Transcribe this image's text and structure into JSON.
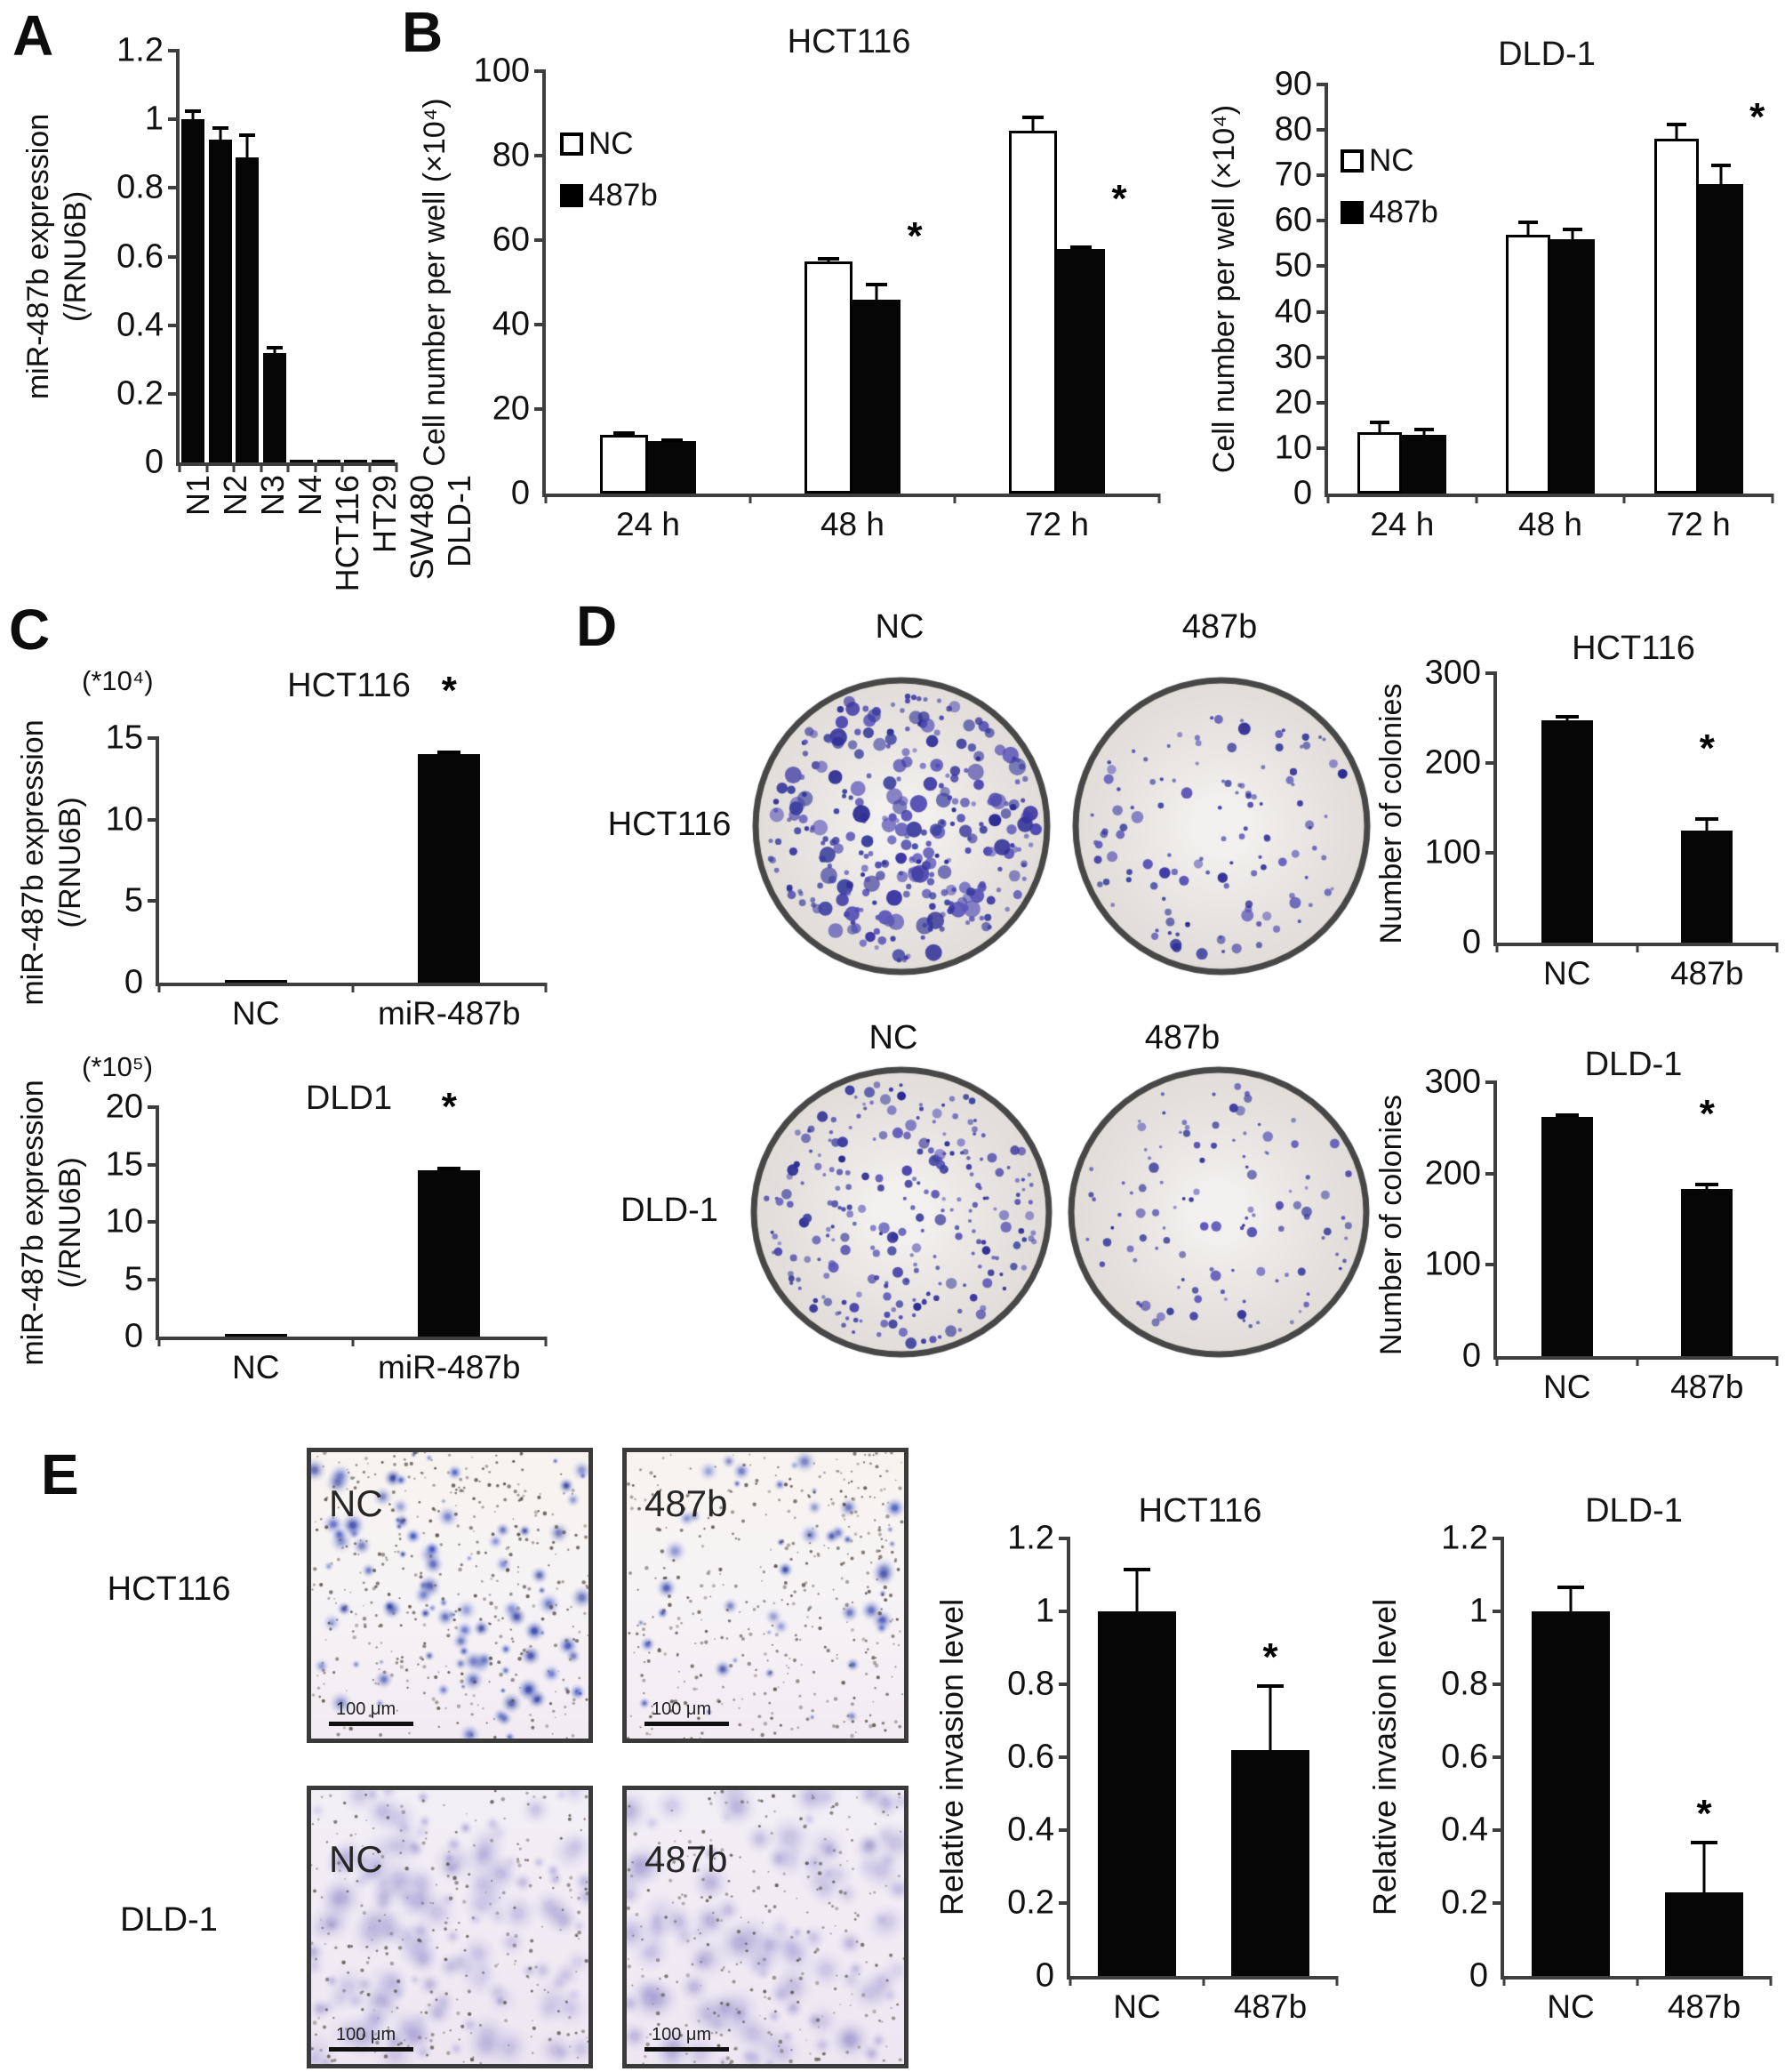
{
  "panels": {
    "A": {
      "label": "A"
    },
    "B": {
      "label": "B"
    },
    "C": {
      "label": "C"
    },
    "D": {
      "label": "D",
      "col_headers": [
        "NC",
        "487b"
      ],
      "row_labels": [
        "HCT116",
        "DLD-1"
      ],
      "dishes": [
        {
          "seed": 11,
          "count": 310,
          "rmin": 2.5,
          "rmax": 10
        },
        {
          "seed": 22,
          "count": 120,
          "rmin": 2,
          "rmax": 7
        },
        {
          "seed": 33,
          "count": 250,
          "rmin": 2,
          "rmax": 6.5
        },
        {
          "seed": 44,
          "count": 115,
          "rmin": 1.8,
          "rmax": 6
        }
      ]
    },
    "E": {
      "label": "E",
      "row_labels": [
        "HCT116",
        "DLD-1"
      ],
      "image_labels": [
        "NC",
        "487b",
        "NC",
        "487b"
      ],
      "scale_label": "100 μm",
      "images": [
        {
          "seed": 7,
          "variant": "blue",
          "cluster_count": 95,
          "speckle_count": 400
        },
        {
          "seed": 17,
          "variant": "blue",
          "cluster_count": 45,
          "speckle_count": 420
        },
        {
          "seed": 27,
          "variant": "purple",
          "cluster_count": 150,
          "speckle_count": 260
        },
        {
          "seed": 37,
          "variant": "purple",
          "cluster_count": 120,
          "speckle_count": 260
        }
      ]
    }
  },
  "chart_data": [
    {
      "id": "A",
      "type": "bar",
      "title": "",
      "ylabel_lines": [
        "miR-487b expression",
        "(/RNU6B)"
      ],
      "yticks": [
        "0",
        "0.2",
        "0.4",
        "0.6",
        "0.8",
        "1",
        "1.2"
      ],
      "categories": [
        "N1",
        "N2",
        "N3",
        "N4",
        "HCT116",
        "HT29",
        "SW480",
        "DLD-1"
      ],
      "values": [
        1.0,
        0.94,
        0.89,
        0.32,
        0.005,
        0.005,
        0.005,
        0.005
      ],
      "errors": [
        0.03,
        0.04,
        0.07,
        0.02,
        0,
        0,
        0,
        0
      ],
      "stars": [
        false,
        false,
        false,
        false,
        false,
        false,
        false,
        false
      ],
      "rotate_xlabels": true
    },
    {
      "id": "B1",
      "type": "grouped_bar",
      "title": "HCT116",
      "ylabel_lines": [
        "Cell number per well (×10⁴)"
      ],
      "yticks": [
        "0",
        "20",
        "40",
        "60",
        "80",
        "100"
      ],
      "categories": [
        "24 h",
        "48 h",
        "72 h"
      ],
      "series": [
        {
          "name": "NC",
          "fill": "white",
          "values": [
            14,
            55,
            86
          ],
          "errors": [
            0.7,
            1,
            3.5
          ],
          "stars": [
            false,
            false,
            false
          ]
        },
        {
          "name": "487b",
          "fill": "black",
          "values": [
            12.5,
            46,
            58
          ],
          "errors": [
            0.5,
            4,
            0.8
          ],
          "stars": [
            false,
            true,
            true
          ]
        }
      ],
      "legend": true
    },
    {
      "id": "B2",
      "type": "grouped_bar",
      "title": "DLD-1",
      "ylabel_lines": [
        "Cell number per well (×10⁴)"
      ],
      "yticks": [
        "0",
        "10",
        "20",
        "30",
        "40",
        "50",
        "60",
        "70",
        "80",
        "90"
      ],
      "categories": [
        "24 h",
        "48 h",
        "72 h"
      ],
      "series": [
        {
          "name": "NC",
          "fill": "white",
          "values": [
            13.5,
            57,
            78
          ],
          "errors": [
            2.5,
            3,
            3.5
          ],
          "stars": [
            false,
            false,
            false
          ]
        },
        {
          "name": "487b",
          "fill": "black",
          "values": [
            13,
            56,
            68
          ],
          "errors": [
            1.5,
            2.5,
            4.5
          ],
          "stars": [
            false,
            false,
            true
          ]
        }
      ],
      "legend": true
    },
    {
      "id": "C1",
      "type": "bar",
      "title": "HCT116",
      "unit": "(*10⁴)",
      "ylabel_lines": [
        "miR-487b expression",
        "(/RNU6B)"
      ],
      "yticks": [
        "0",
        "5",
        "10",
        "15"
      ],
      "categories": [
        "NC",
        "miR-487b"
      ],
      "values": [
        0.08,
        14
      ],
      "errors": [
        0,
        0.25
      ],
      "stars": [
        false,
        true
      ]
    },
    {
      "id": "C2",
      "type": "bar",
      "title": "DLD1",
      "unit": "(*10⁵)",
      "ylabel_lines": [
        "miR-487b expression",
        "(/RNU6B)"
      ],
      "yticks": [
        "0",
        "5",
        "10",
        "15",
        "20"
      ],
      "categories": [
        "NC",
        "miR-487b"
      ],
      "values": [
        0.1,
        14.5
      ],
      "errors": [
        0,
        0.3
      ],
      "stars": [
        false,
        true
      ]
    },
    {
      "id": "D1",
      "type": "bar",
      "title": "HCT116",
      "ylabel_lines": [
        "Number of colonies"
      ],
      "yticks": [
        "0",
        "100",
        "200",
        "300"
      ],
      "categories": [
        "NC",
        "487b"
      ],
      "values": [
        248,
        125
      ],
      "errors": [
        5,
        15
      ],
      "stars": [
        false,
        true
      ]
    },
    {
      "id": "D2",
      "type": "bar",
      "title": "DLD-1",
      "ylabel_lines": [
        "Number of colonies"
      ],
      "yticks": [
        "0",
        "100",
        "200",
        "300"
      ],
      "categories": [
        "NC",
        "487b"
      ],
      "values": [
        262,
        183
      ],
      "errors": [
        4,
        7
      ],
      "stars": [
        false,
        true
      ]
    },
    {
      "id": "E1",
      "type": "bar",
      "title": "HCT116",
      "ylabel_lines": [
        "Relative invasion level"
      ],
      "yticks": [
        "0",
        "0.2",
        "0.4",
        "0.6",
        "0.8",
        "1",
        "1.2"
      ],
      "categories": [
        "NC",
        "487b"
      ],
      "values": [
        1.0,
        0.62
      ],
      "errors": [
        0.12,
        0.18
      ],
      "stars": [
        false,
        true
      ]
    },
    {
      "id": "E2",
      "type": "bar",
      "title": "DLD-1",
      "ylabel_lines": [
        "Relative invasion level"
      ],
      "yticks": [
        "0",
        "0.2",
        "0.4",
        "0.6",
        "0.8",
        "1",
        "1.2"
      ],
      "categories": [
        "NC",
        "487b"
      ],
      "values": [
        1.0,
        0.23
      ],
      "errors": [
        0.07,
        0.14
      ],
      "stars": [
        false,
        true
      ]
    }
  ]
}
